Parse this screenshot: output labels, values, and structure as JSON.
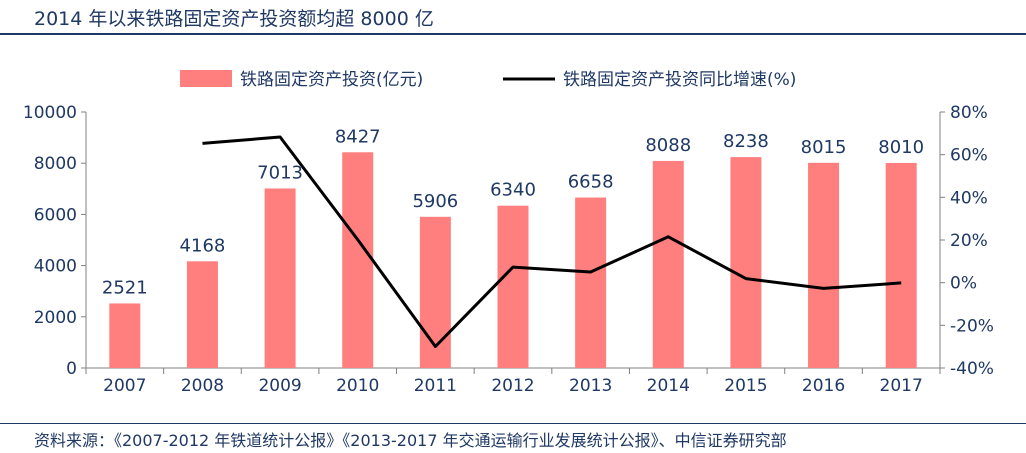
{
  "title": "2014 年以来铁路固定资产投资额均超 8000 亿",
  "source": "资料来源：《2007-2012 年铁道统计公报》《2013-2017 年交通运输行业发展统计公报》、中信证券研究部",
  "colors": {
    "bar": "#ff7f7f",
    "line": "#000000",
    "text": "#1f3864",
    "axis": "#808080"
  },
  "chart_data": {
    "type": "bar+line",
    "categories": [
      "2007",
      "2008",
      "2009",
      "2010",
      "2011",
      "2012",
      "2013",
      "2014",
      "2015",
      "2016",
      "2017"
    ],
    "series": [
      {
        "name": "铁路固定资产投资(亿元)",
        "type": "bar",
        "axis": "left",
        "values": [
          2521,
          4168,
          7013,
          8427,
          5906,
          6340,
          6658,
          8088,
          8238,
          8015,
          8010
        ]
      },
      {
        "name": "铁路固定资产投资同比增速(%)",
        "type": "line",
        "axis": "right",
        "values": [
          null,
          65.3,
          68.3,
          20.2,
          -29.9,
          7.3,
          5.0,
          21.5,
          1.9,
          -2.7,
          -0.1
        ]
      }
    ],
    "y_left": {
      "lim": [
        0,
        10000
      ],
      "ticks": [
        0,
        2000,
        4000,
        6000,
        8000,
        10000
      ]
    },
    "y_right": {
      "lim": [
        -40,
        80
      ],
      "ticks": [
        "-40%",
        "-20%",
        "0%",
        "20%",
        "40%",
        "60%",
        "80%"
      ]
    },
    "legend_position": "top-center",
    "data_labels": true
  }
}
